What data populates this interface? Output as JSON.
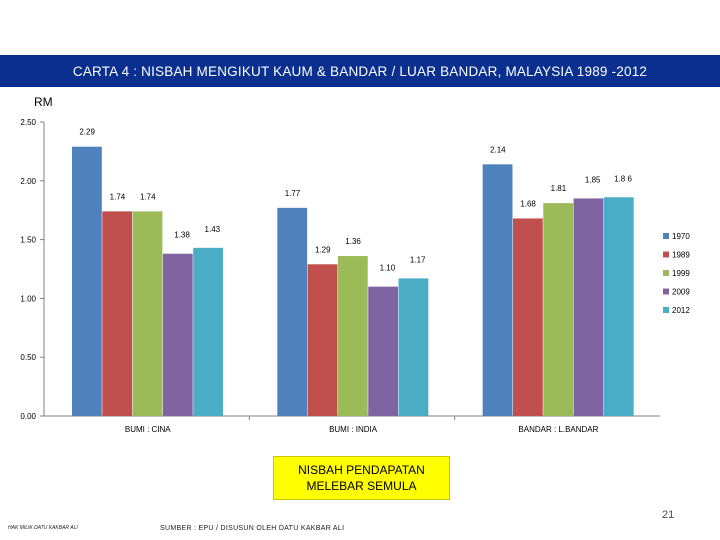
{
  "title": "CARTA 4 : NISBAH MENGIKUT KAUM & BANDAR / LUAR BANDAR, MALAYSIA 1989 -2012",
  "callout": {
    "line1": "NISBAH PENDAPATAN",
    "line2": "MELEBAR SEMULA"
  },
  "page_number": "21",
  "source": "SUMBER : EPU / DISUSUN OLEH DATU KAKBAR ALI",
  "author": "HAK MILIK DATU KAKBAR ALI",
  "chart_data": {
    "type": "bar",
    "ylabel": "RM",
    "ylim": [
      0,
      2.5
    ],
    "yticks": [
      "0.00",
      "0.50",
      "1.00",
      "1.50",
      "2.00",
      "2.50"
    ],
    "grid": false,
    "legend_position": "right",
    "categories": [
      "BUMI : CINA",
      "BUMI : INDIA",
      "BANDAR : L.BANDAR"
    ],
    "series": [
      {
        "name": "1970",
        "color": "#4f81bd",
        "values": [
          2.29,
          1.77,
          2.14
        ],
        "labels": [
          "2.29",
          "1.77",
          "2.14"
        ]
      },
      {
        "name": "1989",
        "color": "#c0504d",
        "values": [
          1.74,
          1.29,
          1.68
        ],
        "labels": [
          "1.74",
          "1.29",
          "1.68"
        ]
      },
      {
        "name": "1999",
        "color": "#9bbb59",
        "values": [
          1.74,
          1.36,
          1.81
        ],
        "labels": [
          "1.74",
          "1.36",
          "1.81"
        ]
      },
      {
        "name": "2009",
        "color": "#8064a2",
        "values": [
          1.38,
          1.1,
          1.85
        ],
        "labels": [
          "1.38",
          "1.10",
          "1.85"
        ]
      },
      {
        "name": "2012",
        "color": "#4bacc6",
        "values": [
          1.43,
          1.17,
          1.86
        ],
        "labels": [
          "1.43",
          "1.17",
          "1.8 6"
        ]
      }
    ]
  }
}
